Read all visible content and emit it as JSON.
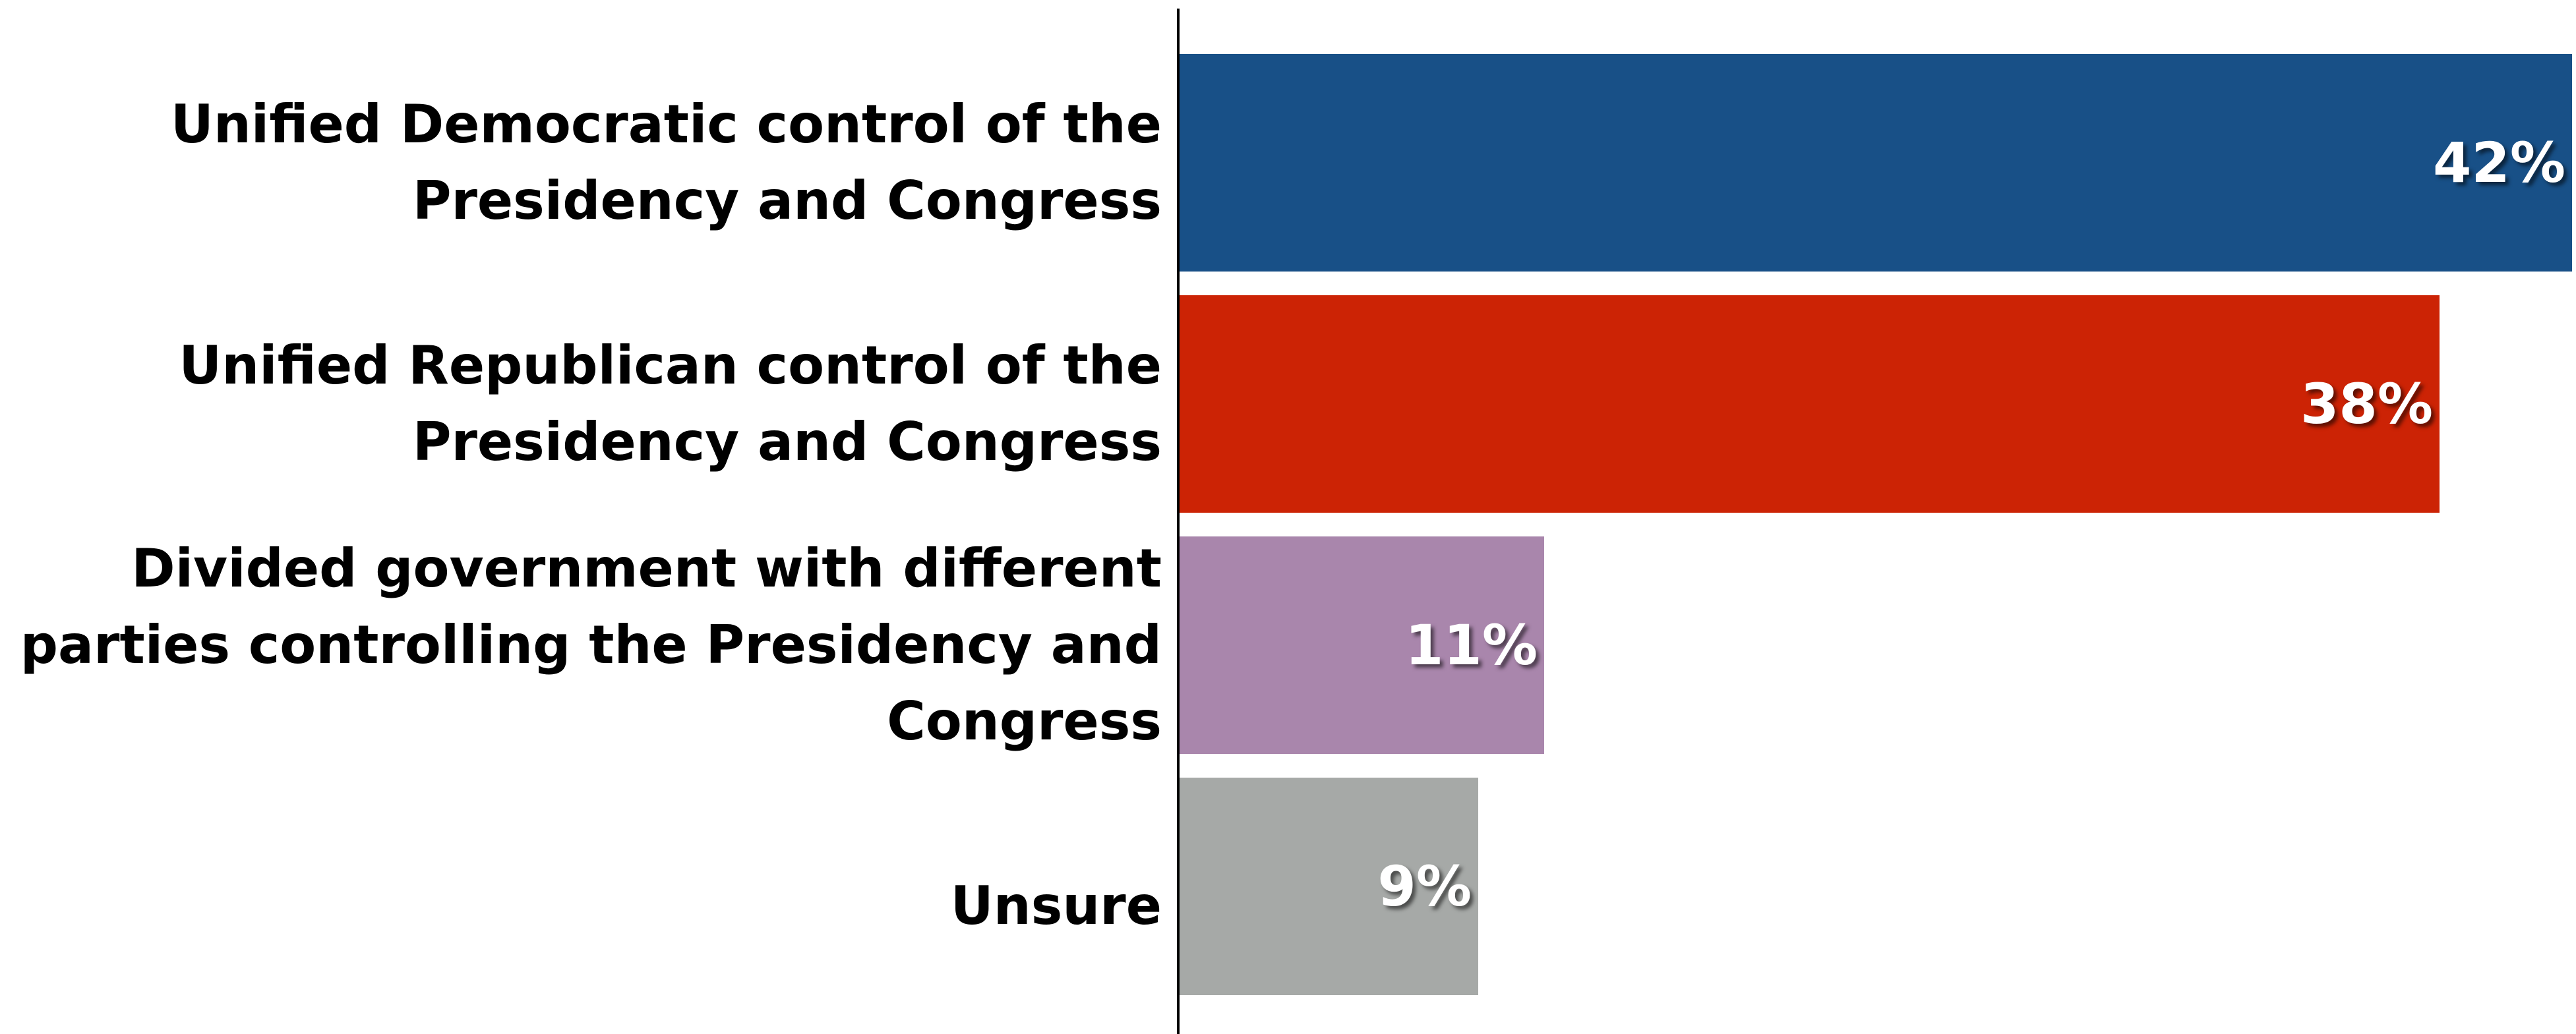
{
  "chart_data": {
    "type": "bar",
    "orientation": "horizontal",
    "title": "",
    "xlabel": "",
    "ylabel": "",
    "xlim": [
      0,
      42
    ],
    "grid": false,
    "legend": "none",
    "categories": [
      "Unified Democratic control of the\nPresidency and Congress",
      "Unified Republican control of the\nPresidency and Congress",
      "Divided government with different\nparties controlling the Presidency and\nCongress",
      "Unsure"
    ],
    "values": [
      42,
      38,
      11,
      9
    ],
    "value_labels": [
      "42%",
      "38%",
      "11%",
      "9%"
    ],
    "colors": [
      "#185087",
      "#CC2305",
      "#A986AC",
      "#A6A9A7"
    ]
  }
}
